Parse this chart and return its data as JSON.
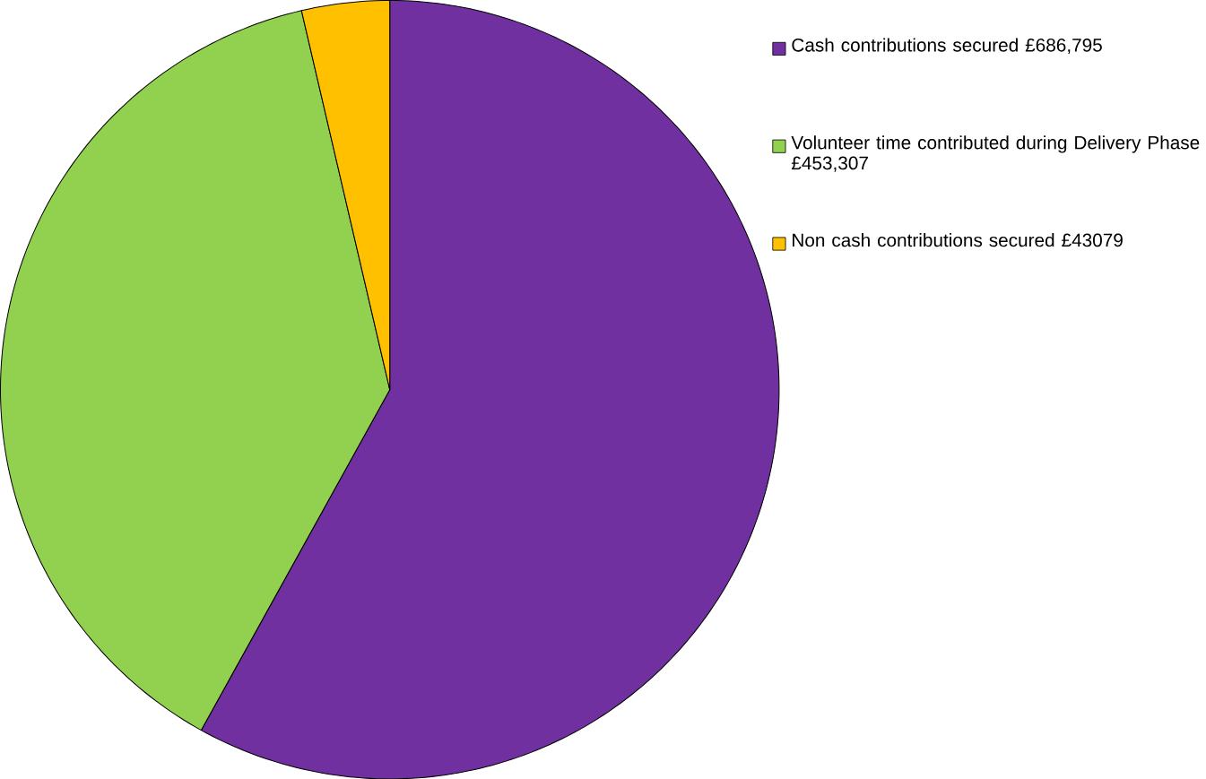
{
  "chart_data": {
    "type": "pie",
    "categories": [
      "Cash contributions secured £686,795",
      "Volunteer time contributed during Delivery Phase  £453,307",
      "Non cash contributions secured £43079"
    ],
    "values": [
      686795,
      453307,
      43079
    ],
    "colors": [
      "#7030a0",
      "#92d050",
      "#ffc000"
    ],
    "legend": "right"
  }
}
